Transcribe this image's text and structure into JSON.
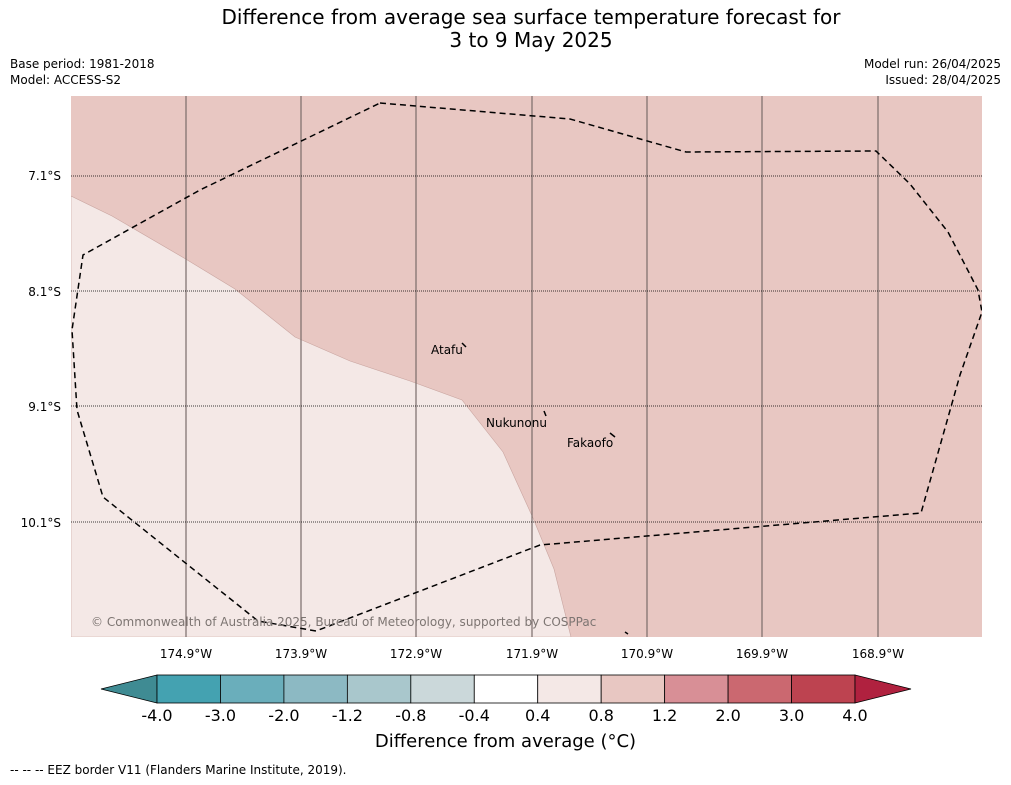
{
  "title_line1": "Difference from average sea surface temperature forecast for",
  "title_line2": "3 to 9 May 2025",
  "meta_left": {
    "base_period": "Base period: 1981-2018",
    "model": "Model: ACCESS-S2"
  },
  "meta_right": {
    "model_run": "Model run: 26/04/2025",
    "issued": "Issued: 28/04/2025"
  },
  "map": {
    "lat_labels": [
      "7.1°S",
      "8.1°S",
      "9.1°S",
      "10.1°S"
    ],
    "lon_labels": [
      "174.9°W",
      "173.9°W",
      "172.9°W",
      "171.9°W",
      "170.9°W",
      "169.9°W",
      "168.9°W"
    ],
    "places": [
      "Atafu",
      "Nukunonu",
      "Fakaofo"
    ],
    "copyright": "© Commonwealth of Australia 2025, Bureau of Meteorology, supported by COSPPac",
    "colors": {
      "zone_warm": "#e8c7c2",
      "zone_mild": "#f4e8e6"
    }
  },
  "colorbar": {
    "label": "Difference from average (°C)",
    "ticks": [
      "-4.0",
      "-3.0",
      "-2.0",
      "-1.2",
      "-0.8",
      "-0.4",
      "0.4",
      "0.8",
      "1.2",
      "2.0",
      "3.0",
      "4.0"
    ],
    "colors": [
      "#3f8b93",
      "#44a2b1",
      "#6aaebb",
      "#8cb9c3",
      "#a9c7cc",
      "#cbd8da",
      "#ffffff",
      "#f4e8e6",
      "#e8c7c2",
      "#d88f96",
      "#cb6870",
      "#bd4350",
      "#b0213f"
    ]
  },
  "footer": "--  --  -- EEZ border V11 (Flanders Marine Institute, 2019)."
}
